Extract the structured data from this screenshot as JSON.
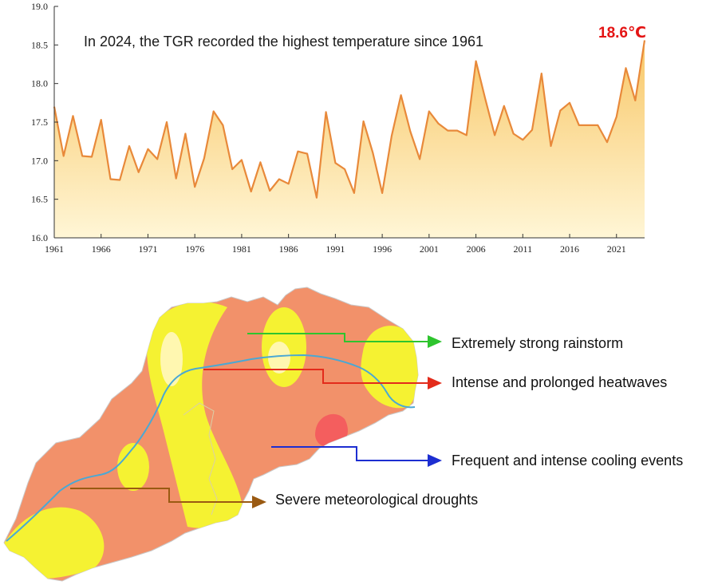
{
  "chart_data": {
    "type": "area",
    "title": "",
    "xlabel": "",
    "ylabel": "",
    "annotation": "In 2024, the TGR recorded the highest temperature since 1961",
    "peak_label": "18.6℃",
    "ylim": [
      16.0,
      19.0
    ],
    "xlim": [
      1961,
      2024
    ],
    "yticks": [
      "16.0",
      "16.5",
      "17.0",
      "17.5",
      "18.0",
      "18.5",
      "19.0"
    ],
    "xticks": [
      "1961",
      "1966",
      "1971",
      "1976",
      "1981",
      "1986",
      "1991",
      "1996",
      "2001",
      "2006",
      "2011",
      "2016",
      "2021"
    ],
    "grid": false,
    "series": [
      {
        "x": [
          1961,
          1962,
          1963,
          1964,
          1965,
          1966,
          1967,
          1968,
          1969,
          1970,
          1971,
          1972,
          1973,
          1974,
          1975,
          1976,
          1977,
          1978,
          1979,
          1980,
          1981,
          1982,
          1983,
          1984,
          1985,
          1986,
          1987,
          1988,
          1989,
          1990,
          1991,
          1992,
          1993,
          1994,
          1995,
          1996,
          1997,
          1998,
          1999,
          2000,
          2001,
          2002,
          2003,
          2004,
          2005,
          2006,
          2007,
          2008,
          2009,
          2010,
          2011,
          2012,
          2013,
          2014,
          2015,
          2016,
          2017,
          2018,
          2019,
          2020,
          2021,
          2022,
          2023,
          2024
        ],
        "values": [
          17.7,
          17.06,
          17.58,
          17.06,
          17.05,
          17.53,
          16.76,
          16.75,
          17.19,
          16.85,
          17.15,
          17.02,
          17.5,
          16.77,
          17.35,
          16.66,
          17.03,
          17.64,
          17.46,
          16.89,
          17.01,
          16.6,
          16.98,
          16.61,
          16.76,
          16.7,
          17.12,
          17.09,
          16.52,
          17.63,
          16.97,
          16.89,
          16.58,
          17.51,
          17.1,
          16.58,
          17.32,
          17.85,
          17.38,
          17.02,
          17.64,
          17.48,
          17.39,
          17.39,
          17.33,
          18.29,
          17.8,
          17.33,
          17.71,
          17.35,
          17.27,
          17.4,
          18.13,
          17.19,
          17.65,
          17.75,
          17.46,
          17.46,
          17.46,
          17.24,
          17.57,
          18.2,
          17.78,
          18.56
        ]
      }
    ],
    "colors": {
      "line": "#e8893a",
      "fill_top": "#f9c96d",
      "fill_bottom": "#fff4cf",
      "peak": "#e41414"
    }
  },
  "map_legend": [
    {
      "label": "Extremely strong rainstorm",
      "color": "#2ec42e"
    },
    {
      "label": "Intense and prolonged heatwaves",
      "color": "#e32b1b"
    },
    {
      "label": "Frequent and intense cooling events",
      "color": "#1d2ed1"
    },
    {
      "label": "Severe meteorological droughts",
      "color": "#9a5a12"
    }
  ],
  "map_colors": {
    "region": "#f2916a",
    "drought_zone": "#f5f232",
    "light_zone": "#fff7b0",
    "hot_zone": "#f45e5e",
    "river": "#4aa8d4"
  }
}
